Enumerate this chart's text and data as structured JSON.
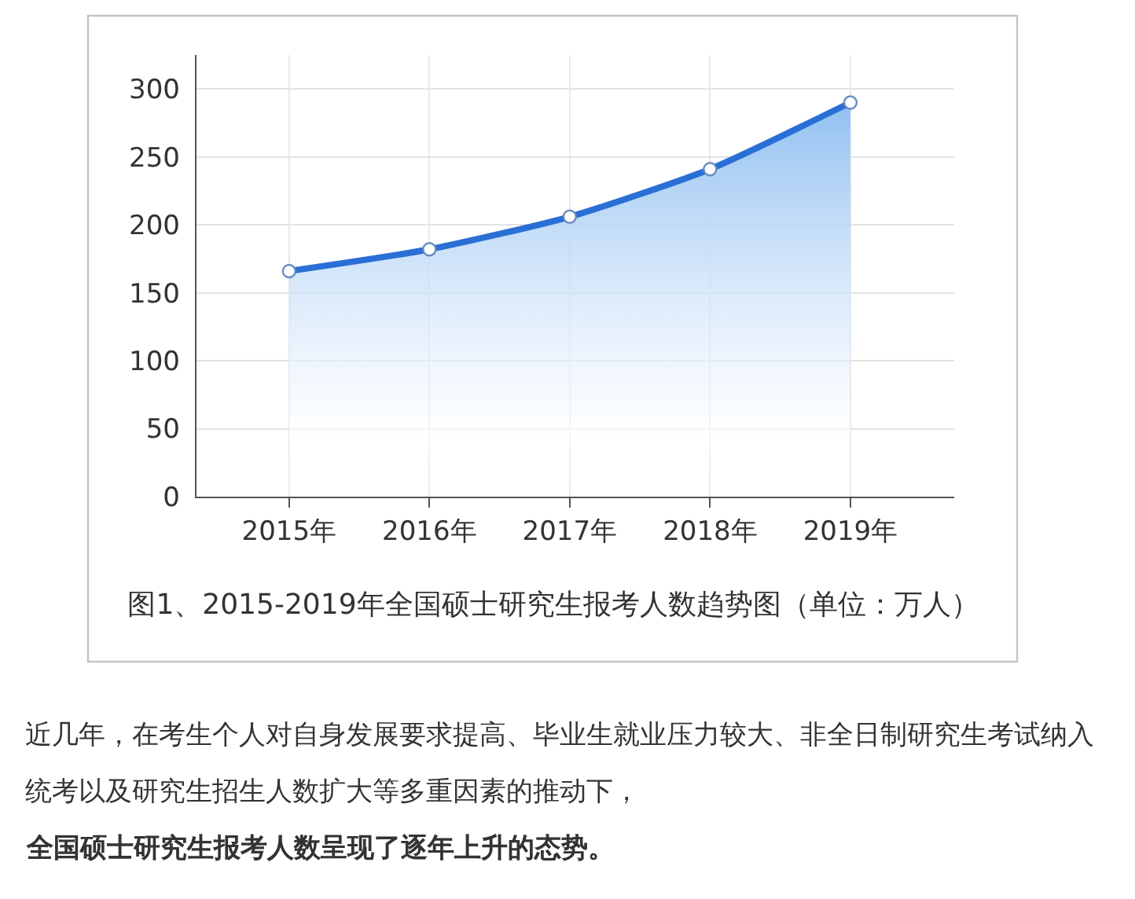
{
  "chart_data": {
    "type": "area",
    "title": "图1、2015-2019年全国硕士研究生报考人数趋势图（单位：万人）",
    "annotations": [
      "近几年，在考生个人对自身发展要求提高、毕业生就业压力较大、非全日制研究生考试纳入统考以及研究生招生人数扩大等多重因素的推动下，",
      "全国硕士研究生报考人数呈现了逐年上升的态势。"
    ],
    "categories": [
      "2015年",
      "2016年",
      "2017年",
      "2018年",
      "2019年"
    ],
    "values": [
      166,
      182,
      206,
      241,
      290
    ],
    "color": "#2a6fd6",
    "ylim": [
      0,
      325
    ],
    "yticks": [
      0,
      50,
      100,
      150,
      200,
      250,
      300
    ],
    "grid": true,
    "marker": "circle"
  }
}
